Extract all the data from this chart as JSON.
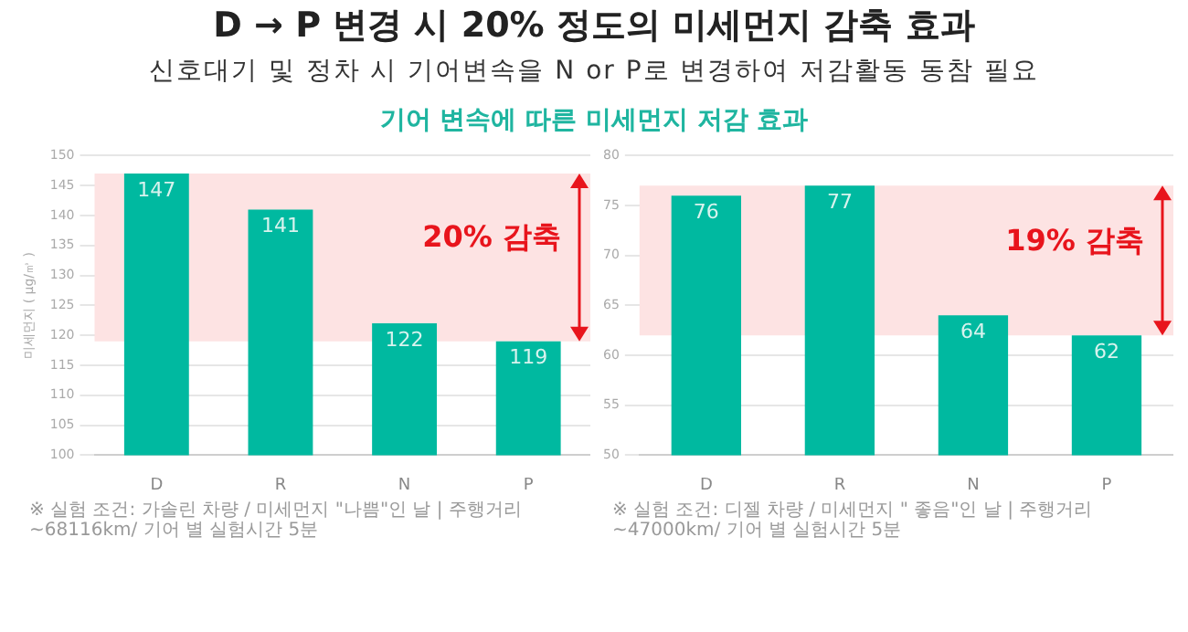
{
  "chart_data": [
    {
      "type": "bar",
      "title": "D → P 변경 시 20% 정도의 미세먼지 감축 효과",
      "subtitle": "신호대기 및 정차 시 기어변속을 N or P로 변경하여 저감활동 동참 필요",
      "annotations": [
        "기어 변속에 따른 미세먼지 저감 효과",
        "※ 실험 조건: 가솔린 차량 / 미세먼지 \"나쁨\"인 날  |  주행거리 ~68116km/ 기어 별 실험시간 5분"
      ],
      "ylabel": "미세먼지 ( μg/㎥ )",
      "categories": [
        "D",
        "R",
        "N",
        "P"
      ],
      "values": [
        147,
        141,
        122,
        119
      ],
      "color": "#00b9a0",
      "ylim": [
        100,
        150
      ],
      "yticks": [
        100,
        105,
        110,
        115,
        120,
        125,
        130,
        135,
        140,
        145,
        150
      ],
      "grid": "y",
      "data_labels": true,
      "bands": [
        {
          "axis": "y",
          "from": 119,
          "to": 147,
          "label": "20% 감축",
          "color": "#fde3e3"
        }
      ]
    },
    {
      "type": "bar",
      "annotations": [
        "※ 실험 조건: 디젤 차량 / 미세먼지 \" 좋음\"인 날  |  주행거리 ~47000km/ 기어 별 실험시간 5분"
      ],
      "categories": [
        "D",
        "R",
        "N",
        "P"
      ],
      "values": [
        76,
        77,
        64,
        62
      ],
      "color": "#00b9a0",
      "ylim": [
        50,
        80
      ],
      "yticks": [
        50,
        55,
        60,
        65,
        70,
        75,
        80
      ],
      "grid": "y",
      "data_labels": true,
      "bands": [
        {
          "axis": "y",
          "from": 62,
          "to": 77,
          "label": "19% 감축",
          "color": "#fde3e3"
        }
      ]
    }
  ]
}
